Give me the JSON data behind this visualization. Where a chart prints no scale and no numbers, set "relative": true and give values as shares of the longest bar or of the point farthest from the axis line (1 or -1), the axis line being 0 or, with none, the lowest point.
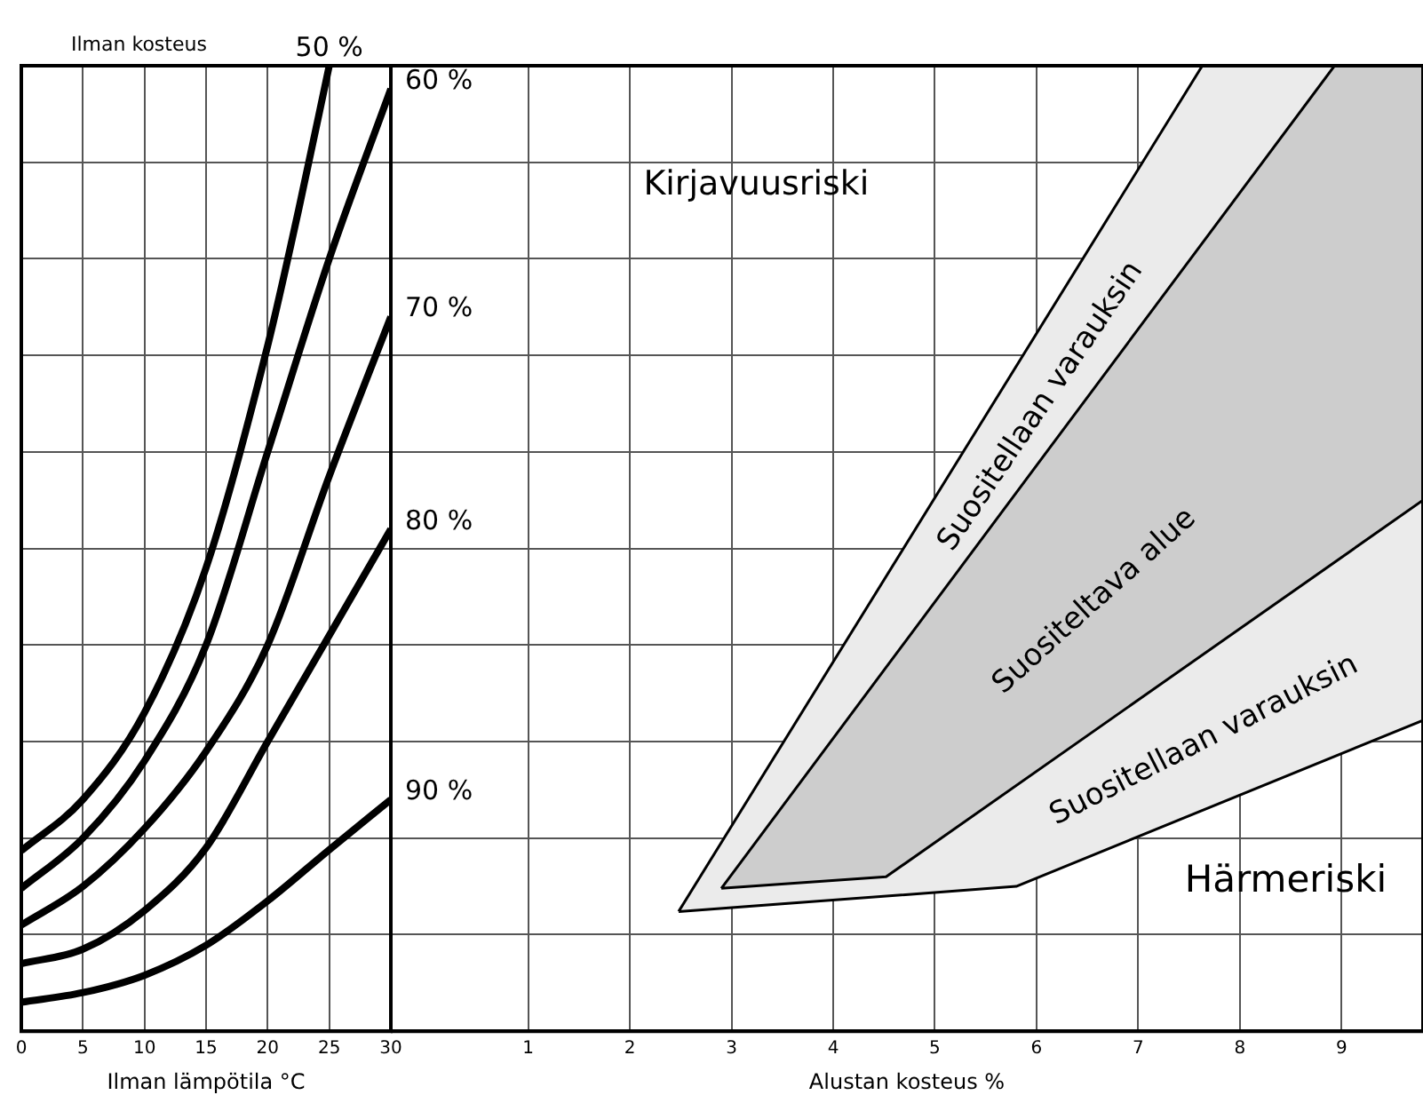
{
  "chart_data": [
    {
      "type": "line",
      "legend_title": "Ilman kosteus",
      "xlabel": "Ilman lämpötila °C",
      "relative": true,
      "grid": true,
      "legend": false,
      "xlim": [
        0,
        30
      ],
      "xticks": [
        0,
        5,
        10,
        15,
        20,
        25,
        30
      ],
      "series": [
        {
          "name": "50 %",
          "color": "#000000",
          "x": [
            0,
            5,
            10,
            15,
            20,
            22.5,
            25
          ],
          "values": [
            0.187,
            0.24,
            0.33,
            0.48,
            0.71,
            0.85,
            1.0
          ]
        },
        {
          "name": "60 %",
          "color": "#000000",
          "x": [
            0,
            5,
            10,
            15,
            20,
            25,
            30
          ],
          "values": [
            0.148,
            0.2,
            0.28,
            0.4,
            0.6,
            0.8,
            0.976
          ]
        },
        {
          "name": "70 %",
          "color": "#000000",
          "x": [
            0,
            5,
            10,
            15,
            20,
            25,
            30
          ],
          "values": [
            0.11,
            0.15,
            0.21,
            0.29,
            0.4,
            0.575,
            0.74
          ]
        },
        {
          "name": "80 %",
          "color": "#000000",
          "x": [
            0,
            5,
            10,
            15,
            20,
            25,
            30
          ],
          "values": [
            0.07,
            0.085,
            0.125,
            0.19,
            0.3,
            0.41,
            0.52
          ]
        },
        {
          "name": "90 %",
          "color": "#000000",
          "x": [
            0,
            5,
            10,
            15,
            20,
            25,
            30
          ],
          "values": [
            0.03,
            0.04,
            0.058,
            0.089,
            0.135,
            0.188,
            0.24
          ]
        }
      ]
    },
    {
      "type": "area",
      "xlabel": "Alustan kosteus %",
      "relative": true,
      "grid": true,
      "legend": false,
      "xlim": [
        -0.35,
        9.8
      ],
      "xticks": [
        1,
        2,
        3,
        4,
        5,
        6,
        7,
        8,
        9
      ],
      "series": [
        {
          "color": "#ebebeb",
          "x": [
            2.48,
            7.63,
            9.8,
            9.8,
            5.8,
            2.48
          ],
          "values": [
            0.124,
            1.0,
            1.0,
            0.322,
            0.15,
            0.124
          ]
        },
        {
          "color": "#cdcdcd",
          "x": [
            2.9,
            8.93,
            9.8,
            9.8,
            4.52,
            2.9
          ],
          "values": [
            0.148,
            1.0,
            1.0,
            0.55,
            0.16,
            0.148
          ]
        }
      ],
      "annotations": [
        "Kirjavuusriski",
        "Suositellaan varauksin",
        "Suositeltava alue",
        "Suositellaan varauksin",
        "Härmeriski"
      ]
    }
  ]
}
